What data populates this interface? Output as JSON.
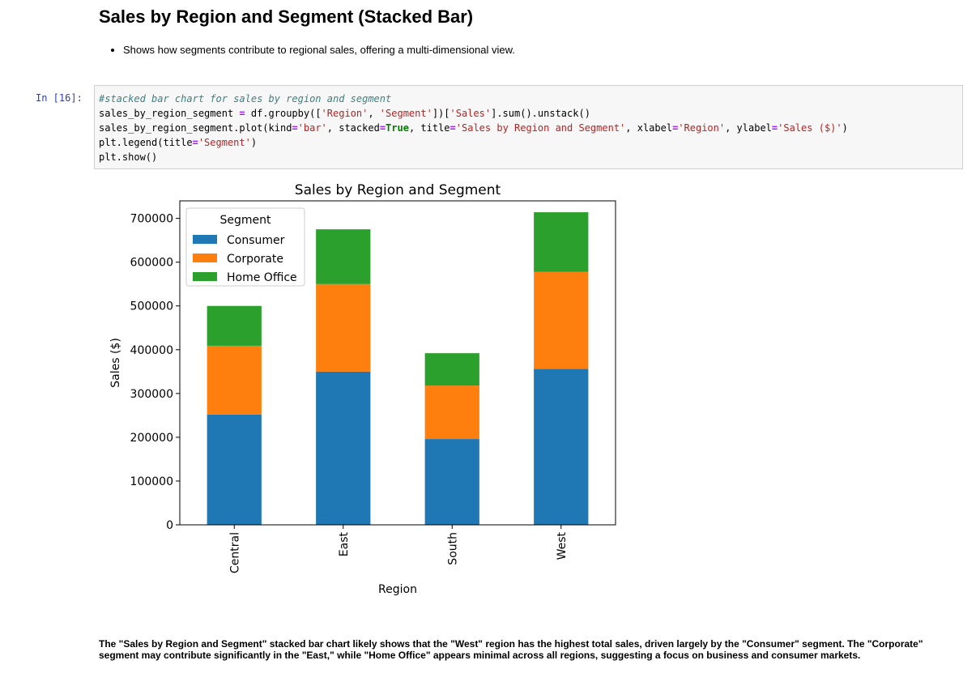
{
  "heading": "Sales by Region and Segment (Stacked Bar)",
  "bullets": [
    "Shows how segments contribute to regional sales, offering a multi-dimensional view."
  ],
  "code_cell": {
    "prompt": "In [16]:",
    "lines": {
      "l1_comment": "#stacked bar chart for sales by region and segment",
      "l2_a": "sales_by_region_segment ",
      "l2_b": "=",
      "l2_c": " df.groupby([",
      "l2_d": "'Region'",
      "l2_e": ", ",
      "l2_f": "'Segment'",
      "l2_g": "])[",
      "l2_h": "'Sales'",
      "l2_i": "].sum().unstack()",
      "l3_a": "sales_by_region_segment.plot(kind",
      "l3_b": "=",
      "l3_c": "'bar'",
      "l3_d": ", stacked",
      "l3_e": "=",
      "l3_f": "True",
      "l3_g": ", title",
      "l3_h": "=",
      "l3_i": "'Sales by Region and Segment'",
      "l3_j": ", xlabel",
      "l3_k": "=",
      "l3_l": "'Region'",
      "l3_m": ", ylabel",
      "l3_n": "=",
      "l3_o": "'Sales ($)'",
      "l3_p": ")",
      "l4_a": "plt.legend(title",
      "l4_b": "=",
      "l4_c": "'Segment'",
      "l4_d": ")",
      "l5": "plt.show()"
    }
  },
  "chart_data": {
    "type": "bar",
    "stacked": true,
    "title": "Sales by Region and Segment",
    "xlabel": "Region",
    "ylabel": "Sales ($)",
    "categories": [
      "Central",
      "East",
      "South",
      "West"
    ],
    "series": [
      {
        "name": "Consumer",
        "color": "#1f77b4",
        "values": [
          252000,
          350000,
          196000,
          356000
        ]
      },
      {
        "name": "Corporate",
        "color": "#ff7f0e",
        "values": [
          157000,
          200000,
          122000,
          222000
        ]
      },
      {
        "name": "Home Office",
        "color": "#2ca02c",
        "values": [
          91000,
          125000,
          74000,
          136000
        ]
      }
    ],
    "ylim": [
      0,
      740000
    ],
    "yticks": [
      0,
      100000,
      200000,
      300000,
      400000,
      500000,
      600000,
      700000
    ],
    "legend_title": "Segment",
    "legend_position": "upper-left",
    "grid": false
  },
  "summary": "The \"Sales by Region and Segment\" stacked bar chart likely shows that the \"West\" region has the highest total sales, driven largely by the \"Consumer\" segment. The \"Corporate\" segment may contribute significantly in the \"East,\" while \"Home Office\" appears minimal across all regions, suggesting a focus on business and consumer markets."
}
